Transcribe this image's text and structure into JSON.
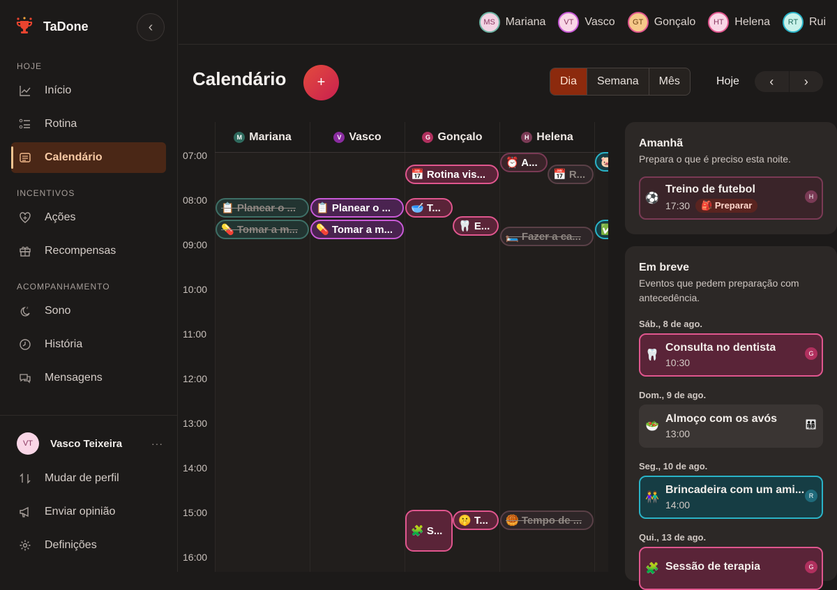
{
  "app": {
    "name": "TaDone"
  },
  "sidebar": {
    "sections": [
      "HOJE",
      "INCENTIVOS",
      "ACOMPANHAMENTO"
    ],
    "items": [
      {
        "label": "Início",
        "icon": "chart-line-icon"
      },
      {
        "label": "Rotina",
        "icon": "checklist-icon"
      },
      {
        "label": "Calendário",
        "icon": "calendar-icon",
        "active": true
      },
      {
        "label": "Ações",
        "icon": "heart-plus-icon"
      },
      {
        "label": "Recompensas",
        "icon": "gift-icon"
      },
      {
        "label": "Sono",
        "icon": "moon-icon"
      },
      {
        "label": "História",
        "icon": "clock-icon"
      },
      {
        "label": "Mensagens",
        "icon": "chat-icon"
      }
    ],
    "profile": {
      "initials": "VT",
      "name": "Vasco Teixeira",
      "more": "···"
    },
    "footer": [
      {
        "label": "Mudar de perfil",
        "icon": "switch-icon"
      },
      {
        "label": "Enviar opinião",
        "icon": "megaphone-icon"
      },
      {
        "label": "Definições",
        "icon": "gear-icon"
      }
    ]
  },
  "members": [
    {
      "initials": "MS",
      "name": "Mariana",
      "bg": "#f3d3e3",
      "fg": "#8a3a62",
      "border": "#6fb6a6"
    },
    {
      "initials": "VT",
      "name": "Vasco",
      "bg": "#f9d6e6",
      "fg": "#8a3a62",
      "border": "#c85ad6"
    },
    {
      "initials": "GT",
      "name": "Gonçalo",
      "bg": "#f6c98a",
      "fg": "#6b3f10",
      "border": "#e0568e"
    },
    {
      "initials": "HT",
      "name": "Helena",
      "bg": "#f9d6e6",
      "fg": "#8a3a62",
      "border": "#e0568e"
    },
    {
      "initials": "RT",
      "name": "Rui",
      "bg": "#c9f2ea",
      "fg": "#1f6a5c",
      "border": "#2ab3c7"
    }
  ],
  "header": {
    "title": "Calendário",
    "add": "+",
    "views": [
      "Dia",
      "Semana",
      "Mês"
    ],
    "today": "Hoje",
    "prev": "‹",
    "next": "›"
  },
  "calendar": {
    "columns": [
      {
        "name": "Mariana",
        "initial": "M",
        "color": "#2f6a5e"
      },
      {
        "name": "Vasco",
        "initial": "V",
        "color": "#8a2ca0"
      },
      {
        "name": "Gonçalo",
        "initial": "G",
        "color": "#b0305e"
      },
      {
        "name": "Helena",
        "initial": "H",
        "color": "#7a3a55"
      }
    ],
    "hours": [
      "07:00",
      "08:00",
      "09:00",
      "10:00",
      "11:00",
      "12:00",
      "13:00",
      "14:00",
      "15:00",
      "16:00"
    ],
    "events": {
      "gon_rotina": "📅 Rotina vis...",
      "gon_t1": "🥣 T...",
      "gon_e": "🦷 E...",
      "gon_s": "🧩 S...",
      "gon_t2": "🤫 T...",
      "hel_a": "⏰ A...",
      "hel_r": "📅 R...",
      "hel_fazer": "🛏️ Fazer a ca...",
      "hel_tempo": "🥮 Tempo de ...",
      "mar_planear": "📋 Planear o ...",
      "mar_tomar": "💊 Tomar a m...",
      "vas_planear": "📋 Planear o ...",
      "vas_tomar": "💊 Tomar a m...",
      "rui_1": "🐷",
      "rui_2": "✅"
    }
  },
  "tomorrow": {
    "title": "Amanhã",
    "subtitle": "Prepara o que é preciso esta noite.",
    "event": {
      "emoji": "⚽",
      "title": "Treino de futebol",
      "time": "17:30",
      "prep": "🎒 Preparar",
      "who": "H"
    }
  },
  "upcoming": {
    "title": "Em breve",
    "subtitle": "Eventos que pedem preparação com antecedência.",
    "groups": [
      {
        "date": "Sáb., 8 de ago.",
        "emoji": "🦷",
        "title": "Consulta no dentista",
        "time": "10:30",
        "who": "G"
      },
      {
        "date": "Dom., 9 de ago.",
        "emoji": "🥗",
        "title": "Almoço com os avós",
        "time": "13:00",
        "who": "👨‍👩‍👧‍👦"
      },
      {
        "date": "Seg., 10 de ago.",
        "emoji": "👫",
        "title": "Brincadeira com um ami...",
        "time": "14:00",
        "who": "R"
      },
      {
        "date": "Qui., 13 de ago.",
        "emoji": "🧩",
        "title": "Sessão de terapia",
        "time": "",
        "who": "G"
      }
    ]
  }
}
